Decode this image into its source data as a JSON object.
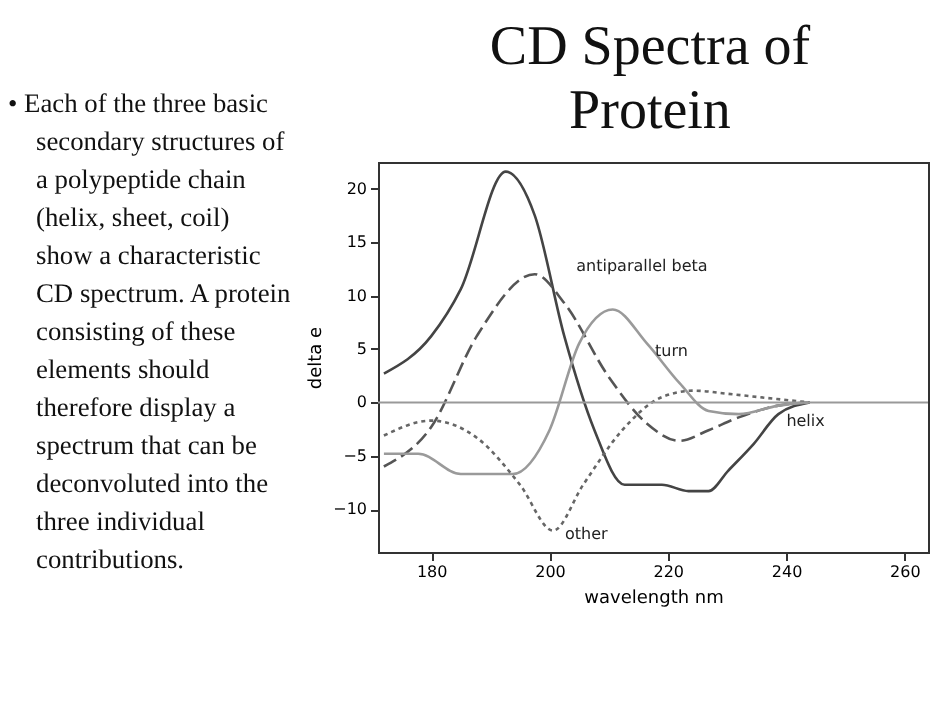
{
  "chart_data": {
    "type": "line",
    "title": "CD Spectra of Protein",
    "xlabel": "wavelength nm",
    "ylabel": "delta e",
    "annotations": [
      "• Each of the three basic secondary structures of a polypeptide chain (helix, sheet, coil) show a characteristic CD spectrum. A protein consisting of these elements should therefore display a spectrum that can be deconvoluted into the three individual contributions."
    ],
    "xlim": [
      171,
      264
    ],
    "xticks": [
      180,
      200,
      220,
      240,
      260
    ],
    "ylim": [
      -14,
      22.5
    ],
    "yticks": [
      -10,
      -5,
      0,
      5,
      10,
      15,
      20
    ],
    "grid": false,
    "marker": "none",
    "ref_lines": [
      {
        "axis": "y",
        "value": 0,
        "color": "#999999"
      }
    ],
    "series": [
      {
        "name": "helix",
        "color": "#444444",
        "line_style": "solid",
        "x": [
          172,
          180,
          185,
          192.6,
          197.5,
          202.5,
          207.6,
          212.7,
          219,
          223.5,
          226.9,
          230.2,
          234.5,
          238.7,
          244
        ],
        "values": [
          2.7,
          6.2,
          10.6,
          21.6,
          17.5,
          6.2,
          -2.6,
          -7.7,
          -7.7,
          -8.3,
          -8.3,
          -6.4,
          -3.9,
          -1.1,
          0
        ]
      },
      {
        "name": "antiparallel beta",
        "color": "#555555",
        "line_style": "dashed",
        "x": [
          172,
          180,
          187.7,
          197.5,
          202.5,
          210,
          216.5,
          222,
          226.9,
          232,
          238.7,
          244
        ],
        "values": [
          -6,
          -2.3,
          6.2,
          12,
          9.3,
          2.4,
          -2,
          -3.6,
          -2.6,
          -1.4,
          -0.3,
          0
        ]
      },
      {
        "name": "turn",
        "color": "#9a9a9a",
        "line_style": "solid",
        "x": [
          172,
          177.8,
          185,
          193.8,
          200,
          205,
          210.7,
          216.5,
          222,
          226.9,
          232,
          238.7,
          244
        ],
        "values": [
          -4.8,
          -4.8,
          -6.7,
          -6.7,
          -2.6,
          5.5,
          8.7,
          5.5,
          1.8,
          -0.8,
          -1.1,
          -0.3,
          0
        ]
      },
      {
        "name": "other",
        "color": "#666666",
        "line_style": "dotted",
        "x": [
          172,
          180,
          187.7,
          195,
          200.6,
          205.7,
          212.3,
          219,
          224.4,
          230.2,
          237,
          244
        ],
        "values": [
          -3.1,
          -1.7,
          -3.3,
          -7.7,
          -12,
          -7.7,
          -2.6,
          0.5,
          1.1,
          0.8,
          0.4,
          0
        ]
      }
    ]
  }
}
